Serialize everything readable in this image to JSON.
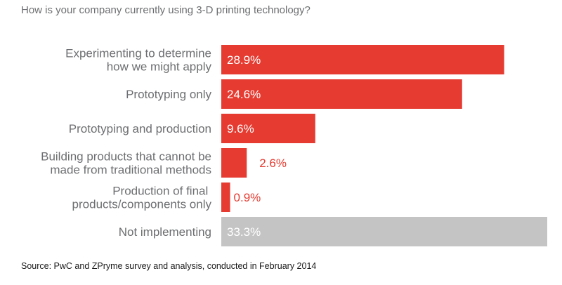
{
  "chart_data": {
    "type": "bar",
    "orientation": "horizontal",
    "title": "How is your company currently using 3-D printing technology?",
    "source": "Source: PwC and ZPryme survey and analysis, conducted in February 2014",
    "xlabel": "",
    "ylabel": "",
    "xlim": [
      0,
      33.3
    ],
    "grid": false,
    "legend": "none",
    "unit": "%",
    "categories": [
      [
        "Experimenting to determine",
        "how we might apply"
      ],
      [
        "Prototyping only"
      ],
      [
        "Prototyping and production"
      ],
      [
        "Building products that cannot be",
        "made from traditional methods"
      ],
      [
        "Production of final ",
        "products/components only"
      ],
      [
        "Not implementing"
      ]
    ],
    "values": [
      28.9,
      24.6,
      9.6,
      2.6,
      0.9,
      33.3
    ],
    "value_labels": [
      "28.9%",
      "24.6%",
      "9.6%",
      "2.6%",
      "0.9%",
      "33.3%"
    ],
    "bar_colors": [
      "#e53b31",
      "#e53b31",
      "#e53b31",
      "#e53b31",
      "#e53b31",
      "#c4c4c5"
    ],
    "label_inside": [
      true,
      true,
      true,
      false,
      false,
      true
    ],
    "colors": {
      "accent": "#e53b31",
      "neutral": "#c4c4c5",
      "label_text": "#6d6e71",
      "inside_text": "#ffffff"
    }
  }
}
